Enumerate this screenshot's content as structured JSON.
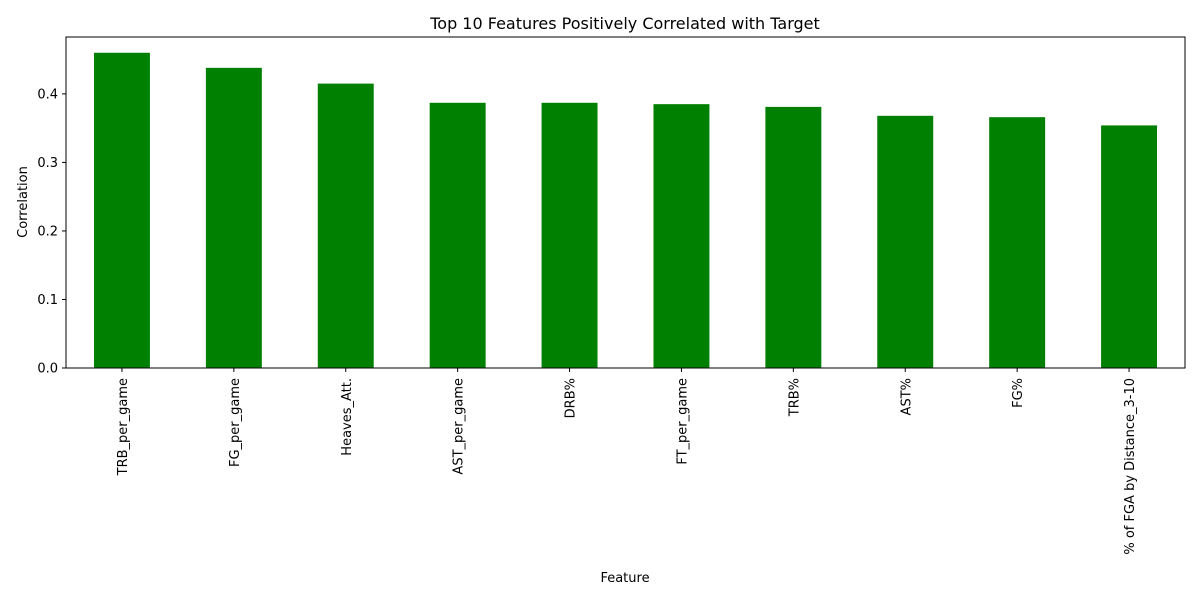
{
  "chart_data": {
    "type": "bar",
    "title": "Top 10 Features Positively Correlated with Target",
    "xlabel": "Feature",
    "ylabel": "Correlation",
    "categories": [
      "TRB_per_game",
      "FG_per_game",
      "Heaves_Att.",
      "AST_per_game",
      "DRB%",
      "FT_per_game",
      "TRB%",
      "AST%",
      "FG%",
      "% of FGA by Distance_3-10"
    ],
    "values": [
      0.46,
      0.438,
      0.415,
      0.387,
      0.387,
      0.385,
      0.381,
      0.368,
      0.366,
      0.354
    ],
    "ylim": [
      0,
      0.483
    ],
    "yticks": [
      0.0,
      0.1,
      0.2,
      0.3,
      0.4
    ],
    "ytick_labels": [
      "0.0",
      "0.1",
      "0.2",
      "0.3",
      "0.4"
    ],
    "bar_color": "#008000",
    "grid": false,
    "legend": "none"
  }
}
